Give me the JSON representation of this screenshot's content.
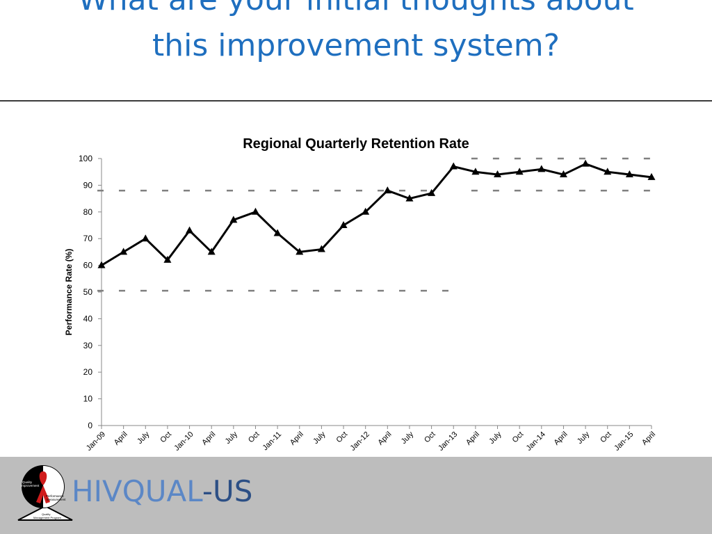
{
  "slide": {
    "title_line1": "What are your initial thoughts about",
    "title_line2": "this improvement system?"
  },
  "footer": {
    "brand_part1": "HIVQUAL",
    "brand_part2": "-US",
    "logo_text": {
      "quality": "Quality",
      "improvement": "Improvement",
      "performance": "Performance",
      "measurement": "Measurement",
      "qmp_line1": "Quality",
      "qmp_line2": "Management Program"
    }
  },
  "colors": {
    "title": "#1f6fbf",
    "line": "#000000",
    "dashed": "#808080",
    "footer_bg": "#bdbdbd",
    "brand1": "#5b87c6",
    "brand2": "#2c4f85",
    "ribbon": "#d01c1c"
  },
  "chart_data": {
    "type": "line",
    "title": "Regional Quarterly Retention Rate",
    "ylabel": "Performance Rate (%)",
    "xlabel": "",
    "ylim": [
      0,
      100
    ],
    "yticks": [
      0,
      10,
      20,
      30,
      40,
      50,
      60,
      70,
      80,
      90,
      100
    ],
    "grid": false,
    "categories": [
      "Jan-09",
      "April",
      "July",
      "Oct",
      "Jan-10",
      "April",
      "July",
      "Oct",
      "Jan-11",
      "April",
      "July",
      "Oct",
      "Jan-12",
      "April",
      "July",
      "Oct",
      "Jan-13",
      "April",
      "July",
      "Oct",
      "Jan-14",
      "April",
      "July",
      "Oct",
      "Jan-15",
      "April"
    ],
    "series": [
      {
        "values": [
          60,
          65,
          70,
          62,
          73,
          65,
          77,
          80,
          72,
          65,
          66,
          75,
          80,
          88,
          85,
          87,
          97,
          95,
          94,
          95,
          96,
          94,
          98,
          95,
          94,
          93
        ]
      }
    ],
    "reference_lines": [
      {
        "value": 88,
        "from": "Jan-09",
        "to": "Oct"
      },
      {
        "value": 50.5,
        "from": "Jan-09",
        "to": "Jan-13"
      },
      {
        "value": 100,
        "from": "April",
        "to": "April"
      },
      {
        "value": 88,
        "from": "April",
        "to": "April"
      }
    ]
  }
}
